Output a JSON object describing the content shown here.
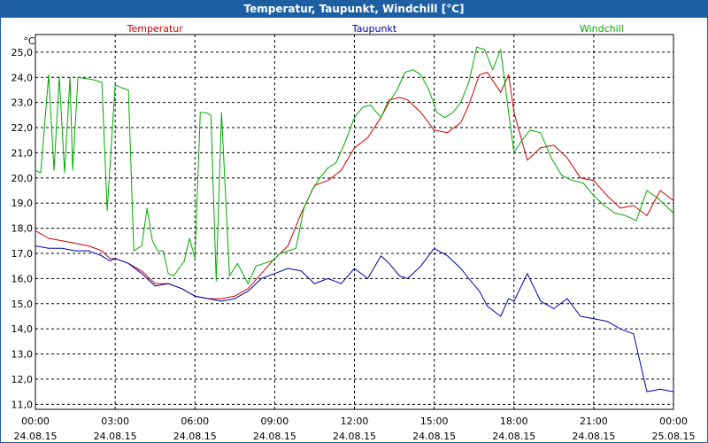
{
  "window": {
    "title": "Temperatur, Taupunkt, Windchill [°C]"
  },
  "chart_data": {
    "type": "line",
    "title": "Temperatur, Taupunkt, Windchill [°C]",
    "ylabel": "°C",
    "xlabel": "",
    "ylim": [
      10.8,
      25.7
    ],
    "xlim": [
      0,
      24
    ],
    "grid": true,
    "legend": "top",
    "yticks": [
      11.0,
      12.0,
      13.0,
      14.0,
      15.0,
      16.0,
      17.0,
      18.0,
      19.0,
      20.0,
      21.0,
      22.0,
      23.0,
      24.0,
      25.0
    ],
    "ytick_labels": [
      "11,0",
      "12,0",
      "13,0",
      "14,0",
      "15,0",
      "16,0",
      "17,0",
      "18,0",
      "19,0",
      "20,0",
      "21,0",
      "22,0",
      "23,0",
      "24,0",
      "25,0"
    ],
    "xticks": [
      {
        "hour": 0,
        "time": "00:00",
        "date": "24.08.15"
      },
      {
        "hour": 3,
        "time": "03:00",
        "date": "24.08.15"
      },
      {
        "hour": 6,
        "time": "06:00",
        "date": "24.08.15"
      },
      {
        "hour": 9,
        "time": "09:00",
        "date": "24.08.15"
      },
      {
        "hour": 12,
        "time": "12:00",
        "date": "24.08.15"
      },
      {
        "hour": 15,
        "time": "15:00",
        "date": "24.08.15"
      },
      {
        "hour": 18,
        "time": "18:00",
        "date": "24.08.15"
      },
      {
        "hour": 21,
        "time": "21:00",
        "date": "24.08.15"
      },
      {
        "hour": 24,
        "time": "00:00",
        "date": "25.08.15"
      }
    ],
    "series": [
      {
        "name": "Temperatur",
        "color": "#cc0000",
        "x": [
          0,
          0.5,
          1,
          1.5,
          2,
          2.5,
          2.8,
          3,
          3.5,
          4,
          4.5,
          5,
          5.5,
          6,
          6.5,
          7,
          7.5,
          8,
          8.5,
          9,
          9.5,
          10,
          10.5,
          11,
          11.5,
          12,
          12.5,
          13,
          13.3,
          13.7,
          14,
          14.5,
          15,
          15.5,
          16,
          16.3,
          16.7,
          17,
          17.5,
          17.8,
          18,
          18.5,
          19,
          19.5,
          20,
          20.5,
          21,
          21.5,
          22,
          22.5,
          23,
          23.5,
          24
        ],
        "values": [
          17.9,
          17.6,
          17.5,
          17.4,
          17.3,
          17.1,
          16.8,
          16.8,
          16.6,
          16.3,
          15.8,
          15.8,
          15.6,
          15.3,
          15.2,
          15.2,
          15.3,
          15.6,
          16.2,
          16.8,
          17.3,
          18.6,
          19.7,
          19.9,
          20.3,
          21.2,
          21.6,
          22.4,
          23.1,
          23.2,
          23.1,
          22.6,
          21.9,
          21.8,
          22.2,
          22.9,
          24.1,
          24.2,
          23.4,
          24.1,
          22.6,
          20.7,
          21.2,
          21.3,
          20.8,
          20.0,
          19.9,
          19.3,
          18.8,
          18.9,
          18.5,
          19.5,
          19.1
        ],
        "label_hour": 4.5
      },
      {
        "name": "Taupunkt",
        "color": "#0000aa",
        "x": [
          0,
          0.5,
          1,
          1.5,
          2,
          2.5,
          2.8,
          3,
          3.5,
          4,
          4.5,
          5,
          5.5,
          6,
          6.5,
          7,
          7.5,
          8,
          8.5,
          9,
          9.5,
          10,
          10.5,
          11,
          11.5,
          12,
          12.5,
          13,
          13.3,
          13.7,
          14,
          14.5,
          15,
          15.5,
          16,
          16.3,
          16.7,
          17,
          17.5,
          17.8,
          18,
          18.5,
          19,
          19.5,
          20,
          20.5,
          21,
          21.5,
          22,
          22.5,
          23,
          23.5,
          24
        ],
        "values": [
          17.3,
          17.2,
          17.2,
          17.1,
          17.1,
          16.9,
          16.7,
          16.8,
          16.6,
          16.2,
          15.7,
          15.8,
          15.6,
          15.3,
          15.2,
          15.1,
          15.2,
          15.5,
          16.0,
          16.2,
          16.4,
          16.3,
          15.8,
          16.0,
          15.8,
          16.4,
          16.0,
          16.9,
          16.6,
          16.1,
          16.0,
          16.5,
          17.2,
          16.9,
          16.4,
          16.0,
          15.5,
          14.9,
          14.5,
          15.2,
          15.1,
          16.2,
          15.1,
          14.8,
          15.2,
          14.5,
          14.4,
          14.3,
          14.0,
          13.8,
          11.5,
          11.6,
          11.5
        ],
        "label_hour": 12.75
      },
      {
        "name": "Windchill",
        "color": "#00aa00",
        "x": [
          0,
          0.2,
          0.5,
          0.7,
          0.9,
          1.1,
          1.3,
          1.4,
          1.6,
          2.2,
          2.5,
          2.7,
          3.0,
          3.2,
          3.5,
          3.7,
          4.0,
          4.2,
          4.4,
          4.6,
          4.8,
          5.0,
          5.2,
          5.4,
          5.6,
          5.8,
          6.0,
          6.2,
          6.4,
          6.6,
          6.8,
          7.0,
          7.3,
          7.6,
          8.0,
          8.3,
          8.6,
          8.9,
          9.2,
          9.5,
          9.8,
          10.1,
          10.4,
          10.7,
          11.0,
          11.3,
          11.6,
          12.0,
          12.3,
          12.6,
          13.0,
          13.3,
          13.6,
          13.9,
          14.2,
          14.5,
          14.8,
          15.1,
          15.4,
          15.7,
          16.0,
          16.3,
          16.6,
          16.9,
          17.2,
          17.5,
          17.8,
          18.0,
          18.3,
          18.6,
          19.0,
          19.4,
          19.8,
          20.2,
          20.6,
          21.0,
          21.4,
          21.8,
          22.2,
          22.6,
          23.0,
          23.4,
          23.7,
          24.0
        ],
        "values": [
          20.3,
          20.2,
          24.1,
          20.3,
          24.0,
          20.2,
          24.0,
          20.3,
          24.0,
          23.9,
          23.8,
          18.7,
          23.7,
          23.6,
          23.5,
          17.1,
          17.3,
          18.8,
          17.5,
          17.1,
          17.1,
          16.2,
          16.1,
          16.4,
          16.7,
          17.6,
          16.8,
          22.6,
          22.6,
          22.5,
          15.9,
          22.6,
          16.1,
          16.6,
          15.8,
          16.5,
          16.6,
          16.7,
          17.0,
          17.1,
          17.2,
          18.8,
          19.5,
          20.0,
          20.4,
          20.6,
          21.3,
          22.4,
          22.8,
          22.9,
          22.4,
          23.0,
          23.5,
          24.2,
          24.3,
          24.1,
          23.5,
          22.6,
          22.4,
          22.6,
          23.0,
          23.8,
          25.2,
          25.1,
          24.3,
          25.1,
          22.6,
          21.0,
          21.5,
          21.9,
          21.8,
          20.8,
          20.1,
          19.9,
          19.8,
          19.3,
          18.9,
          18.6,
          18.5,
          18.3,
          19.5,
          19.2,
          18.9,
          18.6
        ],
        "label_hour": 21.3
      }
    ]
  }
}
